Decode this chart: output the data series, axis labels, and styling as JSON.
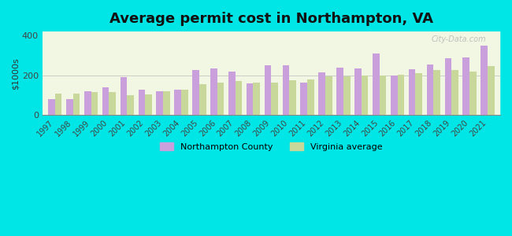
{
  "title": "Average permit cost in Northampton, VA",
  "ylabel": "$1000s",
  "years": [
    1997,
    1998,
    1999,
    2000,
    2001,
    2002,
    2003,
    2004,
    2005,
    2006,
    2007,
    2008,
    2009,
    2010,
    2011,
    2012,
    2013,
    2014,
    2015,
    2016,
    2017,
    2018,
    2019,
    2020,
    2021
  ],
  "northampton": [
    80,
    80,
    120,
    140,
    190,
    130,
    120,
    130,
    225,
    235,
    220,
    160,
    250,
    250,
    165,
    215,
    240,
    235,
    310,
    200,
    230,
    255,
    285,
    290,
    350
  ],
  "virginia": [
    110,
    110,
    115,
    115,
    100,
    105,
    120,
    130,
    155,
    165,
    170,
    165,
    165,
    175,
    180,
    195,
    195,
    200,
    200,
    205,
    210,
    225,
    225,
    220,
    245
  ],
  "northampton_color": "#c9a0dc",
  "virginia_color": "#c8d89a",
  "background_color": "#00e5e5",
  "plot_bg_gradient_top": "#e8f5e0",
  "plot_bg_gradient_bottom": "#f0f8ea",
  "bar_width": 0.38,
  "ylim": [
    0,
    420
  ],
  "yticks": [
    0,
    200,
    400
  ],
  "title_fontsize": 13,
  "legend_northampton": "Northampton County",
  "legend_virginia": "Virginia average",
  "watermark": "City-Data.com"
}
